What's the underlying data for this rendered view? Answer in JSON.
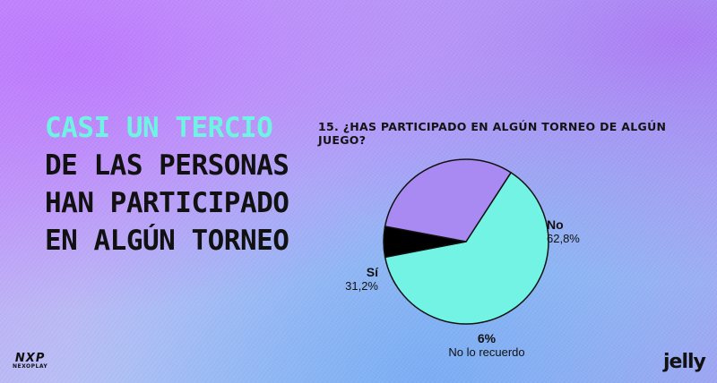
{
  "headline": {
    "line1": "Casi un tercio",
    "line2": "de las personas",
    "line3": "han participado",
    "line4": "en algún torneo"
  },
  "chart_data": {
    "type": "pie",
    "title": "15. ¿Has participado en algún torneo de algún juego?",
    "slices": [
      {
        "label": "No",
        "value": 62.8,
        "display": "62,8%",
        "color": "#73f3e3"
      },
      {
        "label": "",
        "value": 6.0,
        "display": "6%",
        "sublabel": "No lo recuerdo",
        "color": "#000000"
      },
      {
        "label": "Sí",
        "value": 31.2,
        "display": "31,2%",
        "color": "#a98af2"
      }
    ],
    "start_angle_deg": -57
  },
  "labels": {
    "no_name": "No",
    "no_value": "62,8%",
    "si_name": "Sí",
    "si_value": "31,2%",
    "nr_value": "6%",
    "nr_name": "No lo recuerdo"
  },
  "logos": {
    "nexo_mark": "NXP",
    "nexo_word": "NEXOPLAY",
    "jelly": "jelly"
  },
  "colors": {
    "accent": "#6ff3e2",
    "text": "#111111"
  }
}
